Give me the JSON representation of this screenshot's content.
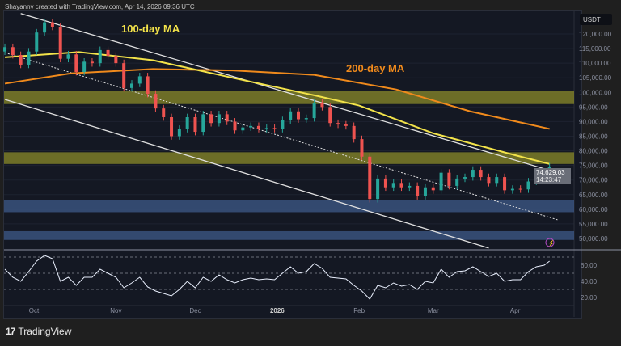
{
  "header": {
    "credit": "Shayannv created with TradingView.com, Apr 14, 2026 09:36 UTC"
  },
  "footer": {
    "brand": "TradingView",
    "logo_icon": "tradingview-logo-icon"
  },
  "colors": {
    "background": "#141823",
    "bull": "#26a69a",
    "bear": "#ef5350",
    "ma100": "#f3e34a",
    "ma200": "#f08a1c",
    "supply_zone": "#8a8a2a",
    "demand_zone": "#3d5a8a",
    "rsi": "#e8eefc",
    "trendline": "#e0e0e0"
  },
  "chart_data": {
    "type": "candlestick",
    "currency": "USDT",
    "last_price": "74,629.03",
    "countdown": "14:23:47",
    "y_ticks": [
      "120,000.00",
      "115,000.00",
      "110,000.00",
      "105,000.00",
      "100,000.00",
      "95,000.00",
      "90,000.00",
      "85,000.00",
      "80,000.00",
      "75,000.00",
      "70,000.00",
      "65,000.00",
      "60,000.00",
      "55,000.00",
      "50,000.00"
    ],
    "y_tick_values": [
      120000,
      115000,
      110000,
      105000,
      100000,
      95000,
      90000,
      85000,
      80000,
      75000,
      70000,
      65000,
      60000,
      55000,
      50000
    ],
    "ylim": [
      47500,
      128000
    ],
    "x_ticks": [
      {
        "label": "Oct",
        "date": "2025-10-01"
      },
      {
        "label": "Nov",
        "date": "2025-11-01"
      },
      {
        "label": "Dec",
        "date": "2025-12-01"
      },
      {
        "label": "2026",
        "date": "2026-01-01",
        "bold": true
      },
      {
        "label": "Feb",
        "date": "2026-02-01"
      },
      {
        "label": "Mar",
        "date": "2026-03-01"
      },
      {
        "label": "Apr",
        "date": "2026-04-01"
      }
    ],
    "closes": [
      [
        "2025-09-20",
        115500
      ],
      [
        "2025-09-23",
        112800
      ],
      [
        "2025-09-26",
        109500
      ],
      [
        "2025-09-29",
        114000
      ],
      [
        "2025-10-02",
        120500
      ],
      [
        "2025-10-05",
        124000
      ],
      [
        "2025-10-08",
        122500
      ],
      [
        "2025-10-11",
        111500
      ],
      [
        "2025-10-14",
        113000
      ],
      [
        "2025-10-17",
        107000
      ],
      [
        "2025-10-20",
        110500
      ],
      [
        "2025-10-23",
        110000
      ],
      [
        "2025-10-26",
        114500
      ],
      [
        "2025-10-29",
        112500
      ],
      [
        "2025-11-01",
        110000
      ],
      [
        "2025-11-04",
        101500
      ],
      [
        "2025-11-07",
        103000
      ],
      [
        "2025-11-10",
        105500
      ],
      [
        "2025-11-13",
        99500
      ],
      [
        "2025-11-16",
        94500
      ],
      [
        "2025-11-19",
        91500
      ],
      [
        "2025-11-22",
        85000
      ],
      [
        "2025-11-25",
        87500
      ],
      [
        "2025-11-28",
        91500
      ],
      [
        "2025-12-01",
        86500
      ],
      [
        "2025-12-04",
        92500
      ],
      [
        "2025-12-07",
        89500
      ],
      [
        "2025-12-10",
        92500
      ],
      [
        "2025-12-13",
        90000
      ],
      [
        "2025-12-16",
        87000
      ],
      [
        "2025-12-19",
        88000
      ],
      [
        "2025-12-22",
        88500
      ],
      [
        "2025-12-25",
        87500
      ],
      [
        "2025-12-28",
        87800
      ],
      [
        "2025-12-31",
        87500
      ],
      [
        "2026-01-03",
        90500
      ],
      [
        "2026-01-06",
        93500
      ],
      [
        "2026-01-09",
        90800
      ],
      [
        "2026-01-12",
        91200
      ],
      [
        "2026-01-15",
        96500
      ],
      [
        "2026-01-18",
        95000
      ],
      [
        "2026-01-21",
        89500
      ],
      [
        "2026-01-24",
        89000
      ],
      [
        "2026-01-27",
        88500
      ],
      [
        "2026-01-30",
        84000
      ],
      [
        "2026-02-02",
        78000
      ],
      [
        "2026-02-05",
        63500
      ],
      [
        "2026-02-08",
        70500
      ],
      [
        "2026-02-11",
        67500
      ],
      [
        "2026-02-14",
        69000
      ],
      [
        "2026-02-17",
        67500
      ],
      [
        "2026-02-20",
        68000
      ],
      [
        "2026-02-23",
        64500
      ],
      [
        "2026-02-26",
        67500
      ],
      [
        "2026-03-01",
        66500
      ],
      [
        "2026-03-04",
        72500
      ],
      [
        "2026-03-07",
        68000
      ],
      [
        "2026-03-10",
        70500
      ],
      [
        "2026-03-13",
        71000
      ],
      [
        "2026-03-16",
        73500
      ],
      [
        "2026-03-19",
        71000
      ],
      [
        "2026-03-22",
        69000
      ],
      [
        "2026-03-25",
        71000
      ],
      [
        "2026-03-28",
        66500
      ],
      [
        "2026-03-31",
        67000
      ],
      [
        "2026-04-03",
        66800
      ],
      [
        "2026-04-06",
        69500
      ],
      [
        "2026-04-09",
        71500
      ],
      [
        "2026-04-12",
        72000
      ],
      [
        "2026-04-14",
        74629
      ]
    ],
    "ma100": {
      "label": "100-day MA",
      "points": [
        [
          "2025-09-20",
          112000
        ],
        [
          "2025-10-18",
          113800
        ],
        [
          "2025-11-15",
          111000
        ],
        [
          "2025-12-15",
          105000
        ],
        [
          "2026-01-15",
          99000
        ],
        [
          "2026-02-01",
          95500
        ],
        [
          "2026-03-01",
          86000
        ],
        [
          "2026-04-01",
          78500
        ],
        [
          "2026-04-14",
          75500
        ]
      ]
    },
    "ma200": {
      "label": "200-day MA",
      "points": [
        [
          "2025-09-20",
          103000
        ],
        [
          "2025-10-15",
          106500
        ],
        [
          "2025-11-15",
          108000
        ],
        [
          "2025-12-15",
          107500
        ],
        [
          "2026-01-15",
          106000
        ],
        [
          "2026-02-15",
          101000
        ],
        [
          "2026-03-15",
          93500
        ],
        [
          "2026-04-14",
          87500
        ]
      ]
    },
    "zones": [
      {
        "type": "supply",
        "from": 96000,
        "to": 100500
      },
      {
        "type": "supply",
        "from": 75500,
        "to": 79500
      },
      {
        "type": "demand",
        "from": 59000,
        "to": 63000
      },
      {
        "type": "demand",
        "from": 49500,
        "to": 52500
      }
    ],
    "trendlines": [
      {
        "style": "solid",
        "from": [
          "2025-09-26",
          127000
        ],
        "to": [
          "2026-04-17",
          72500
        ]
      },
      {
        "style": "solid",
        "from": [
          "2025-09-20",
          97600
        ],
        "to": [
          "2026-03-22",
          46700
        ]
      },
      {
        "style": "dotted",
        "from": [
          "2025-09-20",
          113600
        ],
        "to": [
          "2026-04-17",
          56400
        ]
      }
    ],
    "rsi": {
      "ticks": [
        "60.00",
        "40.00",
        "20.00"
      ],
      "tick_values": [
        60,
        40,
        20
      ],
      "levels": [
        70,
        50,
        30
      ],
      "ylim": [
        10,
        75
      ],
      "values": [
        55,
        45,
        40,
        52,
        65,
        72,
        68,
        40,
        45,
        35,
        45,
        45,
        55,
        50,
        45,
        32,
        38,
        45,
        33,
        28,
        25,
        22,
        30,
        40,
        32,
        45,
        40,
        48,
        42,
        38,
        42,
        44,
        42,
        43,
        42,
        50,
        58,
        50,
        52,
        62,
        56,
        45,
        44,
        43,
        35,
        28,
        18,
        35,
        32,
        38,
        34,
        36,
        30,
        40,
        38,
        55,
        45,
        52,
        53,
        58,
        52,
        46,
        50,
        40,
        42,
        42,
        52,
        58,
        60,
        65
      ]
    }
  }
}
